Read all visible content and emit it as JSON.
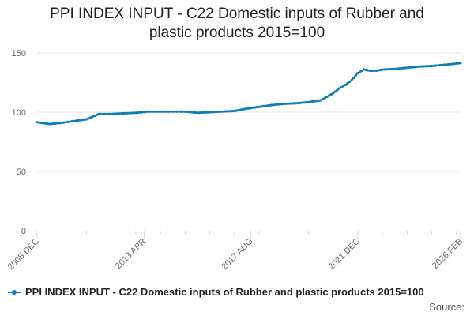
{
  "chart_data": {
    "type": "line",
    "title": "PPI INDEX INPUT - C22 Domestic inputs of Rubber and plastic products 2015=100",
    "title_lines": [
      "PPI INDEX INPUT - C22 Domestic inputs of Rubber and",
      "plastic products 2015=100"
    ],
    "xlabel": "",
    "ylabel": "",
    "ylim": [
      0,
      150
    ],
    "yticks": [
      0,
      50,
      100,
      150
    ],
    "x_ticks": [
      "2008 DEC",
      "2013 APR",
      "2017 AUG",
      "2021 DEC",
      "2026 FEB"
    ],
    "x_range": [
      "2008-12",
      "2026-02"
    ],
    "grid": true,
    "legend_position": "bottom",
    "series": [
      {
        "name": "PPI INDEX INPUT - C22 Domestic inputs of Rubber and plastic products 2015=100",
        "color": "#0c7cba",
        "x": [
          "2008-12",
          "2009-06",
          "2009-12",
          "2010-06",
          "2010-12",
          "2011-06",
          "2011-12",
          "2012-06",
          "2012-12",
          "2013-06",
          "2013-12",
          "2014-06",
          "2014-12",
          "2015-06",
          "2015-12",
          "2016-06",
          "2016-12",
          "2017-06",
          "2017-12",
          "2018-06",
          "2018-12",
          "2019-06",
          "2019-12",
          "2020-06",
          "2020-12",
          "2021-03",
          "2021-06",
          "2021-09",
          "2021-12",
          "2022-03",
          "2022-06",
          "2022-09",
          "2022-12",
          "2023-06",
          "2023-12",
          "2024-06",
          "2024-12",
          "2025-06",
          "2025-12",
          "2026-02"
        ],
        "values": [
          91.5,
          90,
          91,
          92.5,
          94,
          98.5,
          98.5,
          99,
          99.5,
          100.5,
          100.5,
          100.5,
          100.5,
          99.5,
          100,
          100.5,
          101,
          103,
          104.5,
          106,
          107,
          107.5,
          108.5,
          110,
          116,
          120,
          123,
          127,
          133,
          136,
          135,
          135,
          136,
          136.5,
          137.5,
          138.5,
          139,
          140,
          141,
          141.5
        ]
      }
    ]
  },
  "source_label": "Source:"
}
